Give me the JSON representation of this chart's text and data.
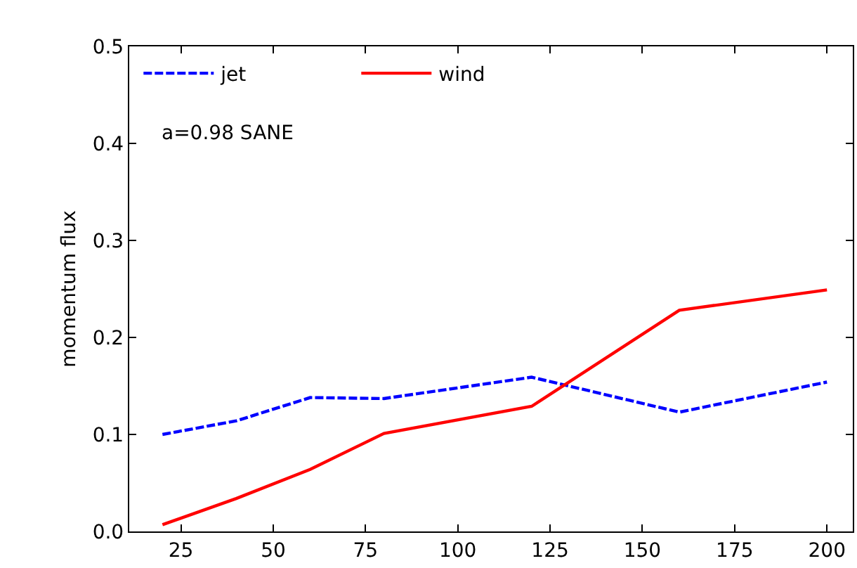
{
  "chart_data": {
    "type": "line",
    "ylabel": "momentum flux",
    "x": [
      20,
      40,
      60,
      80,
      120,
      160,
      200
    ],
    "series": [
      {
        "name": "jet",
        "color": "#0000ff",
        "line_style": "dashed",
        "values": [
          0.1,
          0.114,
          0.138,
          0.137,
          0.159,
          0.123,
          0.154
        ]
      },
      {
        "name": "wind",
        "color": "#ff0000",
        "line_style": "solid",
        "values": [
          0.007,
          0.034,
          0.064,
          0.101,
          0.129,
          0.228,
          0.249
        ]
      }
    ],
    "annotations": [
      "a=0.98 SANE"
    ],
    "xlim": [
      11,
      207
    ],
    "xticks": [
      25,
      50,
      75,
      100,
      125,
      150,
      175,
      200
    ],
    "ylim": [
      0,
      0.5
    ],
    "yticks": [
      {
        "value": 0,
        "label": "0.0"
      },
      {
        "value": 0.1,
        "label": "0.1"
      },
      {
        "value": 0.2,
        "label": "0.2"
      },
      {
        "value": 0.3,
        "label": "0.3"
      },
      {
        "value": 0.4,
        "label": "0.4"
      },
      {
        "value": 0.5,
        "label": "0.5"
      }
    ],
    "legend": "top left"
  }
}
